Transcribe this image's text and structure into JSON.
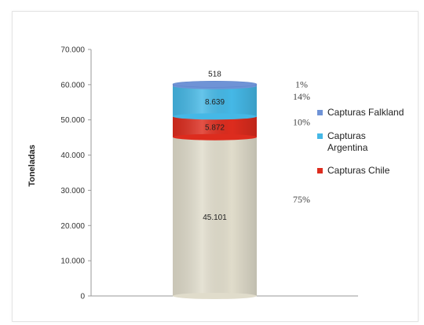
{
  "chart_data": {
    "type": "bar",
    "stacked": true,
    "ylabel": "Toneladas",
    "ylim": [
      0,
      70000
    ],
    "yticks": [
      "0",
      "10.000",
      "20.000",
      "30.000",
      "40.000",
      "50.000",
      "60.000",
      "70.000"
    ],
    "series": [
      {
        "name": "Capturas Chile",
        "value": 45101,
        "label": "45.101",
        "pct": "75%",
        "color": "#e0dccb",
        "legend": false
      },
      {
        "name": "Capturas Chile",
        "value": 5872,
        "label": "5.872",
        "pct": "10%",
        "color": "#dd2c1e",
        "legend": true
      },
      {
        "name": "Capturas Argentina",
        "value": 8639,
        "label": "8.639",
        "pct": "14%",
        "color": "#45b8e6",
        "legend": true
      },
      {
        "name": "Capturas Falkland",
        "value": 518,
        "label": "518",
        "pct": "1%",
        "color": "#6f93d6",
        "legend": true
      }
    ],
    "legend": [
      {
        "lines": [
          "Capturas Falkland"
        ],
        "color": "#6f93d6"
      },
      {
        "lines": [
          "Capturas",
          "Argentina"
        ],
        "color": "#45b8e6"
      },
      {
        "lines": [
          "Capturas Chile"
        ],
        "color": "#dd2c1e"
      }
    ],
    "legend_position": "right",
    "grid": false
  }
}
